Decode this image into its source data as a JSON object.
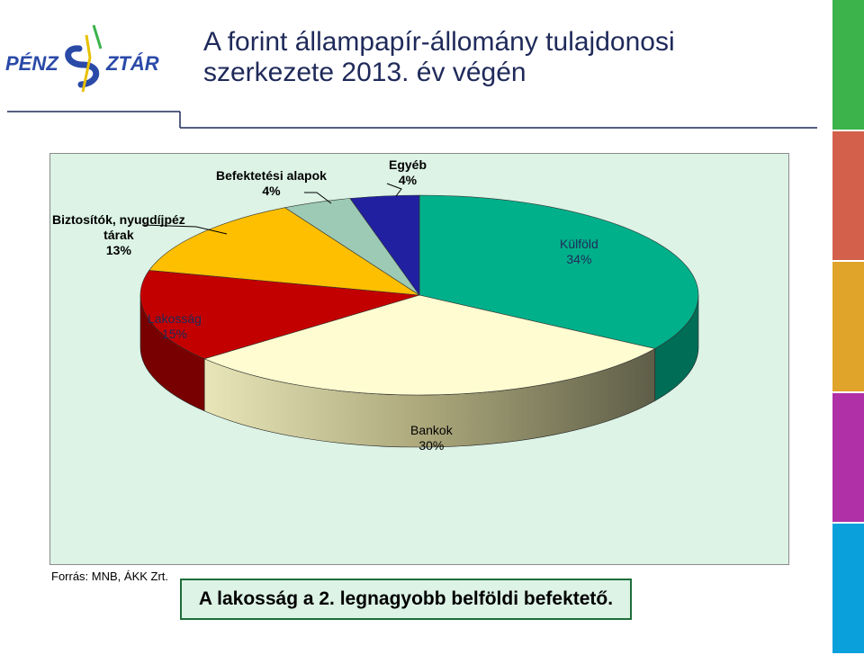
{
  "title": {
    "line1": "A forint állampapír-állomány tulajdonosi",
    "line2": "szerkezete 2013. év végén"
  },
  "logo": {
    "text": "PÉNZ SZTÁR",
    "icon": "penzsztar-logo"
  },
  "colors": {
    "title": "#1f2a5a",
    "chart_background": "#dcf3e6",
    "side_bars": [
      "#3cb44b",
      "#d2604a",
      "#e0a42a",
      "#b030a8",
      "#0aa0dc"
    ]
  },
  "chart_data": {
    "type": "pie",
    "title": "",
    "slices": [
      {
        "name": "Külföld",
        "value": 34,
        "label": "34%",
        "color": "#00b08a"
      },
      {
        "name": "Bankok",
        "value": 30,
        "label": "30%",
        "color": "#fefcd0"
      },
      {
        "name": "Lakosság",
        "value": 15,
        "label": "15%",
        "color": "#c30000"
      },
      {
        "name": "Biztosítók, nyugdíjpéztárak",
        "label_line1": "Biztosítók, nyugdíjpéz",
        "label_line2": "tárak",
        "value": 13,
        "label": "13%",
        "color": "#fdbf00"
      },
      {
        "name": "Befektetési alapok",
        "value": 4,
        "label": "4%",
        "color": "#9ccab4"
      },
      {
        "name": "Egyéb",
        "value": 4,
        "label": "4%",
        "color": "#2020a0"
      }
    ],
    "legend": "none",
    "style": "3d-exploded-none"
  },
  "source": "Forrás: MNB, ÁKK Zrt.",
  "callout": "A lakosság a 2. legnagyobb belföldi befektető."
}
